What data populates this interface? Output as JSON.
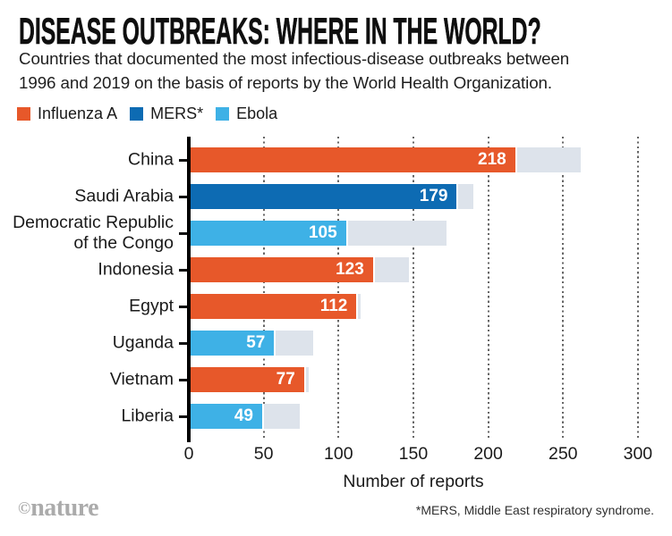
{
  "title": "DISEASE OUTBREAKS: WHERE IN THE WORLD?",
  "subtitle": "Countries that documented the most infectious-disease outbreaks between\n1996 and 2019 on the basis of reports by the World Health Organization.",
  "legend": [
    {
      "label": "Influenza A",
      "color": "#e7582a"
    },
    {
      "label": "MERS*",
      "color": "#0d6bb3"
    },
    {
      "label": "Ebola",
      "color": "#3eb1e6"
    }
  ],
  "chart_data": {
    "type": "bar",
    "orientation": "horizontal",
    "xlabel": "Number of reports",
    "xlim": [
      0,
      300
    ],
    "xticks": [
      0,
      50,
      100,
      150,
      200,
      250,
      300
    ],
    "grid": "vertical-dotted",
    "colors": {
      "Influenza A": "#e7582a",
      "MERS*": "#0d6bb3",
      "Ebola": "#3eb1e6",
      "total_remainder": "#dde3eb"
    },
    "rows": [
      {
        "country": "China",
        "label_display": "China",
        "disease": "Influenza A",
        "value": 218,
        "total": 262
      },
      {
        "country": "Saudi Arabia",
        "label_display": "Saudi Arabia",
        "disease": "MERS*",
        "value": 179,
        "total": 190
      },
      {
        "country": "Democratic Republic of the Congo",
        "label_display": "Democratic Republic\nof the Congo",
        "disease": "Ebola",
        "value": 105,
        "total": 172
      },
      {
        "country": "Indonesia",
        "label_display": "Indonesia",
        "disease": "Influenza A",
        "value": 123,
        "total": 147
      },
      {
        "country": "Egypt",
        "label_display": "Egypt",
        "disease": "Influenza A",
        "value": 112,
        "total": 115
      },
      {
        "country": "Uganda",
        "label_display": "Uganda",
        "disease": "Ebola",
        "value": 57,
        "total": 83
      },
      {
        "country": "Vietnam",
        "label_display": "Vietnam",
        "disease": "Influenza A",
        "value": 77,
        "total": 80
      },
      {
        "country": "Liberia",
        "label_display": "Liberia",
        "disease": "Ebola",
        "value": 49,
        "total": 74
      }
    ]
  },
  "footer": {
    "logo_copyright": "©",
    "logo_name": "nature",
    "footnote": "*MERS, Middle East respiratory syndrome."
  }
}
